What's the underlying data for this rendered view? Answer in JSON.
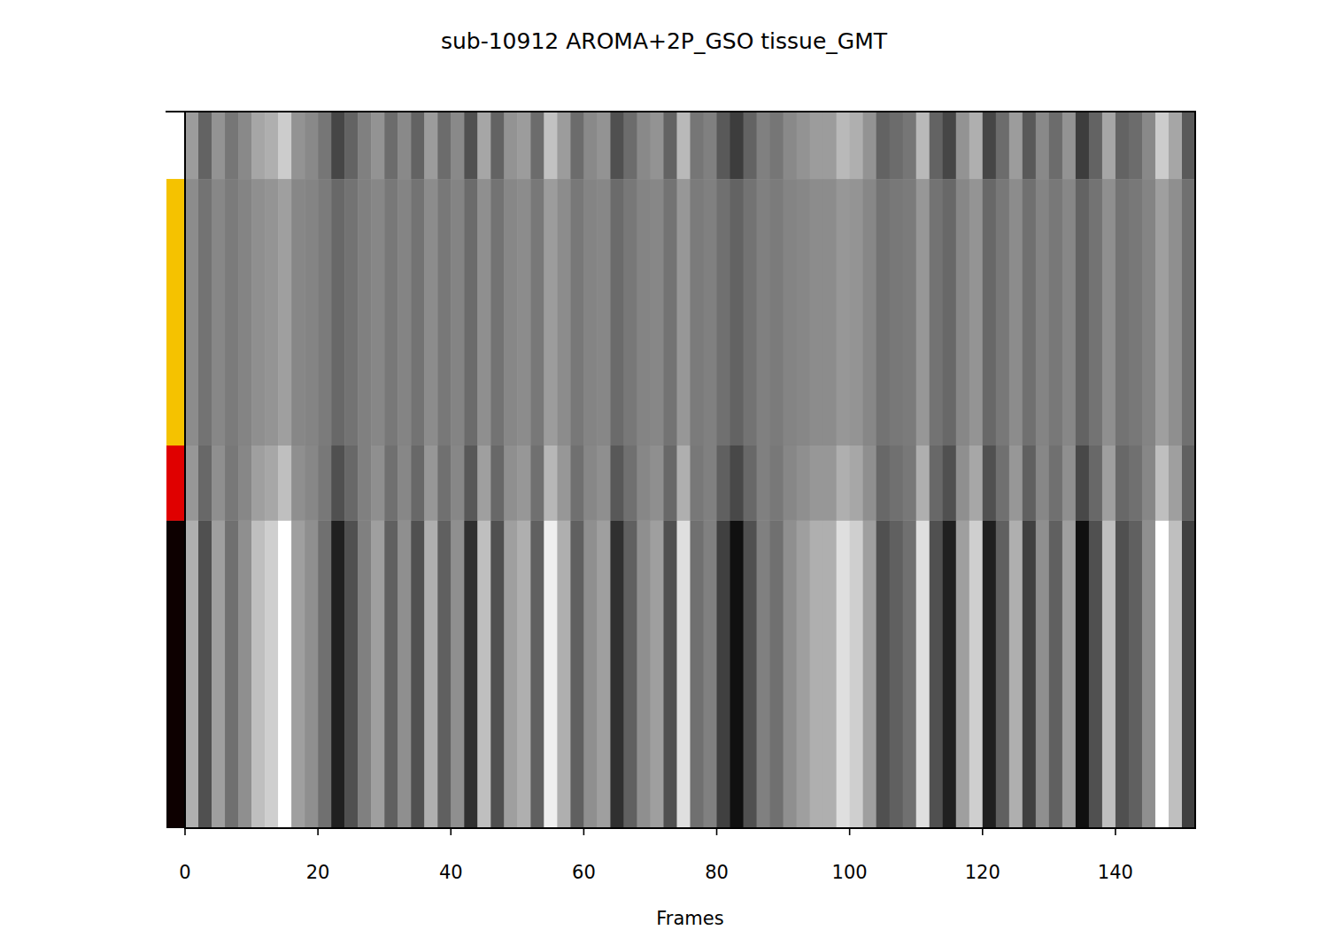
{
  "chart_data": {
    "type": "heatmap",
    "title": "sub-10912 AROMA+2P_GSO tissue_GMT",
    "x_label": "Frames",
    "xlim": [
      0,
      152
    ],
    "xticks": [
      0,
      20,
      40,
      60,
      80,
      100,
      120,
      140
    ],
    "ylim": [
      0,
      100
    ],
    "tick_labels": "x",
    "x_edges": [
      0,
      2,
      4,
      6,
      8,
      10,
      12,
      14,
      16,
      18,
      20,
      22,
      24,
      26,
      28,
      30,
      32,
      34,
      36,
      38,
      40,
      42,
      44,
      46,
      48,
      50,
      52,
      54,
      56,
      58,
      60,
      62,
      64,
      66,
      68,
      70,
      72,
      74,
      76,
      78,
      80,
      82,
      84,
      86,
      88,
      90,
      92,
      94,
      96,
      98,
      100,
      102,
      104,
      106,
      108,
      110,
      112,
      114,
      116,
      118,
      120,
      122,
      124,
      126,
      128,
      130,
      132,
      134,
      136,
      138,
      140,
      142,
      144,
      146,
      148,
      150,
      152
    ],
    "y_edges": [
      0,
      9.4,
      46.6,
      57.1,
      100
    ],
    "row_colors": [
      "#ffffff",
      "#f5c200",
      "#e00000",
      "#0d0000"
    ],
    "color_range": [
      -0.8,
      0.8
    ],
    "cells": [
      [
        0.18,
        -0.18,
        0.12,
        -0.06,
        0.06,
        0.24,
        0.3,
        0.48,
        0.12,
        0.06,
        -0.06,
        -0.36,
        -0.18,
        0,
        0.12,
        -0.12,
        0.06,
        -0.18,
        0.18,
        -0.12,
        0.06,
        -0.3,
        0.24,
        -0.18,
        0.12,
        0.18,
        -0.12,
        0.42,
        0.18,
        -0.12,
        0.06,
        0.12,
        -0.3,
        -0.12,
        0.06,
        0.12,
        -0.18,
        0.36,
        -0.06,
        0,
        -0.24,
        -0.42,
        -0.18,
        0,
        -0.06,
        0.06,
        0.12,
        0.18,
        0.18,
        0.36,
        0.3,
        0.12,
        -0.18,
        -0.12,
        -0.06,
        0.36,
        -0.18,
        -0.36,
        0.12,
        0.3,
        -0.36,
        -0.12,
        0.18,
        -0.24,
        0.06,
        -0.12,
        0.12,
        -0.42,
        -0.18,
        0.24,
        -0.18,
        -0.12,
        0.06,
        0.48,
        0.24,
        -0.24
      ],
      [
        0.08,
        -0.08,
        0.05,
        -0.03,
        0.03,
        0.1,
        0.13,
        0.2,
        0.05,
        0.03,
        -0.03,
        -0.15,
        -0.08,
        0,
        0.05,
        -0.05,
        0.03,
        -0.08,
        0.08,
        -0.05,
        0.03,
        -0.13,
        0.1,
        -0.08,
        0.05,
        0.08,
        -0.05,
        0.18,
        0.08,
        -0.05,
        0.03,
        0.05,
        -0.13,
        -0.05,
        0.03,
        0.05,
        -0.08,
        0.15,
        -0.03,
        0,
        -0.1,
        -0.18,
        -0.08,
        0,
        -0.03,
        0.03,
        0.05,
        0.08,
        0.08,
        0.15,
        0.13,
        0.05,
        -0.08,
        -0.05,
        -0.03,
        0.15,
        -0.08,
        -0.15,
        0.05,
        0.13,
        -0.15,
        -0.05,
        0.08,
        -0.1,
        0.03,
        -0.05,
        0.05,
        -0.18,
        -0.08,
        0.1,
        -0.08,
        -0.05,
        0.03,
        0.2,
        0.1,
        -0.1
      ],
      [
        0.15,
        -0.15,
        0.1,
        -0.05,
        0.05,
        0.2,
        0.25,
        0.4,
        0.1,
        0.05,
        -0.05,
        -0.3,
        -0.15,
        0,
        0.1,
        -0.1,
        0.05,
        -0.15,
        0.15,
        -0.1,
        0.05,
        -0.25,
        0.2,
        -0.15,
        0.1,
        0.15,
        -0.1,
        0.35,
        0.15,
        -0.1,
        0.05,
        0.1,
        -0.25,
        -0.1,
        0.05,
        0.1,
        -0.15,
        0.3,
        -0.05,
        0,
        -0.2,
        -0.35,
        -0.15,
        0,
        -0.05,
        0.05,
        0.1,
        0.15,
        0.15,
        0.3,
        0.25,
        0.1,
        -0.15,
        -0.1,
        -0.05,
        0.3,
        -0.15,
        -0.3,
        0.1,
        0.25,
        -0.3,
        -0.1,
        0.15,
        -0.2,
        0.05,
        -0.1,
        0.1,
        -0.35,
        -0.15,
        0.2,
        -0.15,
        -0.1,
        0.05,
        0.4,
        0.2,
        -0.2
      ],
      [
        0.3,
        -0.3,
        0.2,
        -0.1,
        0.1,
        0.4,
        0.5,
        0.8,
        0.2,
        0.1,
        -0.1,
        -0.6,
        -0.3,
        0,
        0.2,
        -0.2,
        0.1,
        -0.3,
        0.3,
        -0.2,
        0.1,
        -0.5,
        0.4,
        -0.3,
        0.2,
        0.3,
        -0.2,
        0.7,
        0.3,
        -0.2,
        0.1,
        0.2,
        -0.5,
        -0.2,
        0.1,
        0.2,
        -0.3,
        0.6,
        -0.1,
        0,
        -0.4,
        -0.7,
        -0.3,
        0,
        -0.1,
        0.1,
        0.2,
        0.3,
        0.3,
        0.6,
        0.5,
        0.2,
        -0.3,
        -0.2,
        -0.1,
        0.6,
        -0.3,
        -0.6,
        0.2,
        0.5,
        -0.6,
        -0.2,
        0.3,
        -0.4,
        0.1,
        -0.2,
        0.2,
        -0.7,
        -0.3,
        0.4,
        -0.3,
        -0.2,
        0.1,
        0.8,
        0.4,
        -0.4
      ]
    ]
  }
}
